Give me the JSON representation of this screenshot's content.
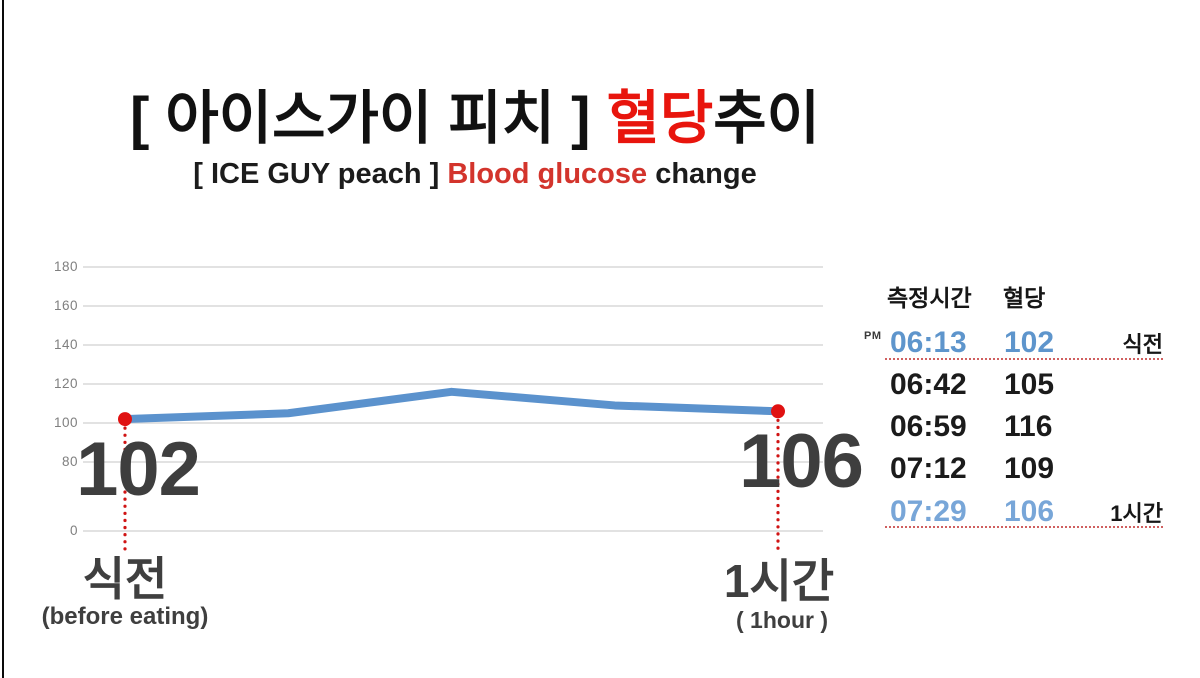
{
  "header": {
    "title_prefix": "[ 아이스가이 피치 ] ",
    "title_highlight": "혈당",
    "title_suffix": "추이",
    "subtitle_prefix": "[ ICE GUY peach ]  ",
    "subtitle_highlight": "Blood glucose",
    "subtitle_suffix": " change"
  },
  "chart_data": {
    "type": "line",
    "title": "[ 아이스가이 피치 ] 혈당추이 / [ ICE GUY peach ] Blood glucose change",
    "x": [
      "PM 06:13",
      "06:42",
      "06:59",
      "07:12",
      "07:29"
    ],
    "values": [
      102,
      105,
      116,
      109,
      106
    ],
    "yticks": [
      "180",
      "160",
      "140",
      "120",
      "100",
      "80",
      "0"
    ],
    "ylim": [
      0,
      180
    ],
    "grid": true,
    "legend": "none",
    "line_color": "#5b92cd",
    "marker_color": "#e01111",
    "grid_color": "#d9d9d9",
    "drop_line_color": "#d01414",
    "annotations": {
      "start_value": "102",
      "end_value": "106",
      "start_label": "식전",
      "start_sublabel": "(before eating)",
      "end_label": "1시간",
      "end_sublabel": "( 1hour )"
    }
  },
  "table": {
    "headers": {
      "time": "측정시간",
      "glucose": "혈당"
    },
    "rows": [
      {
        "meridiem": "PM",
        "time": "06:13",
        "value": "102",
        "note": "식전"
      },
      {
        "time": "06:42",
        "value": "105"
      },
      {
        "time": "06:59",
        "value": "116"
      },
      {
        "time": "07:12",
        "value": "109"
      },
      {
        "time": "07:29",
        "value": "106",
        "note": "1시간"
      }
    ]
  },
  "colors": {
    "accent_red": "#e8150d",
    "subtitle_red": "#d3342c",
    "line_blue": "#5b92cd",
    "marker_red": "#e01111",
    "table_blue_first": "#5e95cc",
    "table_blue_last": "#78a6d8",
    "separator_red": "#d06060",
    "axis_gray": "#7f7f7f",
    "grid_gray": "#d9d9d9",
    "big_number_gray": "#3e3e3e"
  }
}
